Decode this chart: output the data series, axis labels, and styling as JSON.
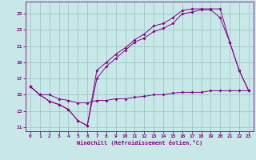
{
  "background_color": "#c8e8e8",
  "grid_color": "#a0c8c8",
  "line_color": "#880088",
  "marker": "D",
  "marker_size": 2.0,
  "xlabel": "Windchill (Refroidissement éolien,°C)",
  "ylabel_ticks": [
    11,
    13,
    15,
    17,
    19,
    21,
    23,
    25
  ],
  "xticks": [
    0,
    1,
    2,
    3,
    4,
    5,
    6,
    7,
    8,
    9,
    10,
    11,
    12,
    13,
    14,
    15,
    16,
    17,
    18,
    19,
    20,
    21,
    22,
    23
  ],
  "xlim": [
    -0.5,
    23.5
  ],
  "ylim": [
    10.5,
    26.5
  ],
  "curve1_x": [
    0,
    1,
    2,
    3,
    4,
    5,
    6,
    7,
    8,
    9,
    10,
    11,
    12,
    13,
    14,
    15,
    16,
    17,
    18,
    19,
    20,
    21,
    22,
    23
  ],
  "curve1_y": [
    16.0,
    15.0,
    14.2,
    13.8,
    13.2,
    11.8,
    11.2,
    18.0,
    19.0,
    20.0,
    20.8,
    21.8,
    22.5,
    23.5,
    23.8,
    24.5,
    25.4,
    25.6,
    25.6,
    25.6,
    25.6,
    21.5,
    18.0,
    15.5
  ],
  "curve2_x": [
    0,
    1,
    2,
    3,
    4,
    5,
    6,
    7,
    8,
    9,
    10,
    11,
    12,
    13,
    14,
    15,
    16,
    17,
    18,
    19,
    20,
    21,
    22,
    23
  ],
  "curve2_y": [
    16.0,
    15.0,
    14.2,
    13.8,
    13.2,
    11.8,
    11.2,
    17.0,
    18.5,
    19.5,
    20.5,
    21.5,
    22.0,
    22.8,
    23.2,
    23.8,
    25.0,
    25.2,
    25.5,
    25.5,
    24.5,
    21.5,
    18.0,
    15.5
  ],
  "curve3_x": [
    0,
    1,
    2,
    3,
    4,
    5,
    6,
    7,
    8,
    9,
    10,
    11,
    12,
    13,
    14,
    15,
    16,
    17,
    18,
    19,
    20,
    21,
    22,
    23
  ],
  "curve3_y": [
    16.0,
    15.0,
    15.0,
    14.5,
    14.3,
    14.0,
    14.0,
    14.3,
    14.3,
    14.5,
    14.5,
    14.7,
    14.8,
    15.0,
    15.0,
    15.2,
    15.3,
    15.3,
    15.3,
    15.5,
    15.5,
    15.5,
    15.5,
    15.5
  ]
}
